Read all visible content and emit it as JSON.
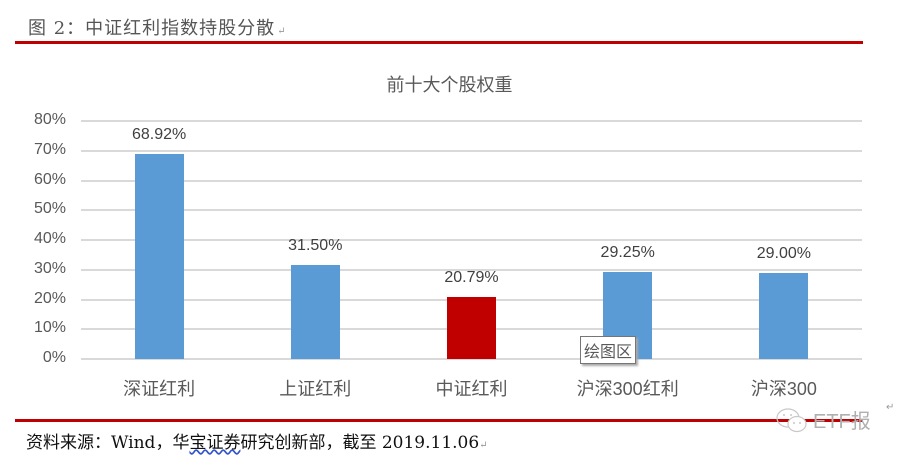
{
  "figure": {
    "title": "图 2：中证红利指数持股分散",
    "source": "资料来源：Wind，华宝证券研究创新部，截至 2019.11.06",
    "source_parts": {
      "prefix": "资料来源：Wind，华",
      "squiggle": "宝证券",
      "suffix": "研究创新部，截至 2019.11.06"
    },
    "watermark": "ETF报",
    "tooltip": "绘图区"
  },
  "colors": {
    "bar_default": "#5b9bd5",
    "bar_highlight": "#c00000",
    "rule": "#c00000",
    "grid": "#d9d9d9"
  },
  "chart_data": {
    "type": "bar",
    "title": "前十大个股权重",
    "categories": [
      "深证红利",
      "上证红利",
      "中证红利",
      "沪深300红利",
      "沪深300"
    ],
    "values": [
      68.92,
      31.5,
      20.79,
      29.25,
      29.0
    ],
    "value_labels": [
      "68.92%",
      "31.50%",
      "20.79%",
      "29.25%",
      "29.00%"
    ],
    "highlight_index": 2,
    "xlabel": "",
    "ylabel": "",
    "ylim": [
      0,
      80
    ],
    "yticks": [
      "0%",
      "10%",
      "20%",
      "30%",
      "40%",
      "50%",
      "60%",
      "70%",
      "80%"
    ],
    "grid": true,
    "legend": "none"
  }
}
